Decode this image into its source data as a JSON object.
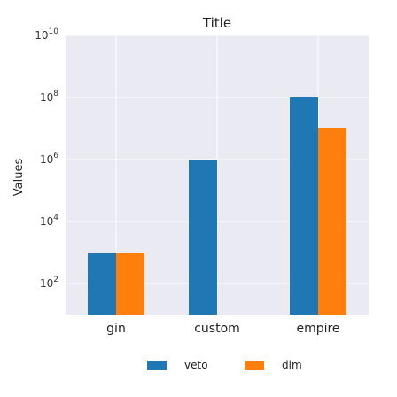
{
  "chart_data": {
    "type": "bar",
    "title": "Title",
    "xlabel": "",
    "ylabel": "Values",
    "yscale": "log",
    "ylim": [
      10,
      10000000000
    ],
    "ytick_exponents": [
      2,
      4,
      6,
      8,
      10
    ],
    "categories": [
      "gin",
      "custom",
      "empire"
    ],
    "series": [
      {
        "name": "veto",
        "color": "#1f77b4",
        "values": [
          1000,
          1000000,
          100000000
        ]
      },
      {
        "name": "dim",
        "color": "#ff7f0e",
        "values": [
          1000,
          10,
          10000000
        ]
      }
    ],
    "grid": true,
    "legend_position": "bottom"
  }
}
